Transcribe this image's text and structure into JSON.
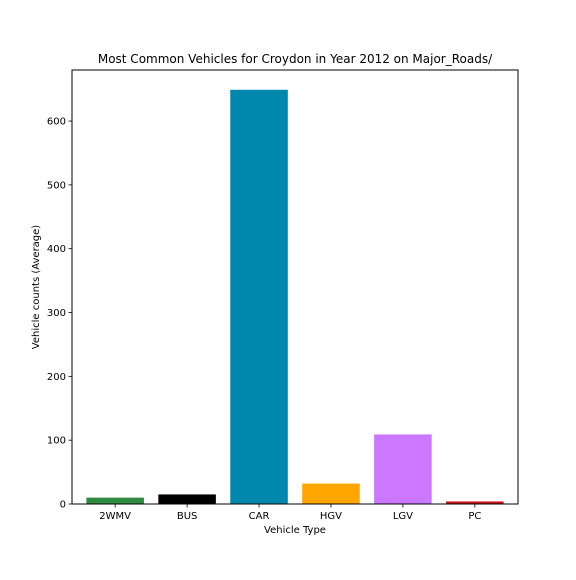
{
  "chart_data": {
    "type": "bar",
    "title": "Most Common Vehicles for Croydon in Year 2012 on Major_Roads/",
    "xlabel": "Vehicle Type",
    "ylabel": "Vehicle counts (Average)",
    "categories": [
      "2WMV",
      "BUS",
      "CAR",
      "HGV",
      "LGV",
      "PC"
    ],
    "values": [
      10,
      15,
      649,
      32,
      109,
      4
    ],
    "colors": [
      "#2e8b3f",
      "#000000",
      "#0087ad",
      "#ffa500",
      "#cc77ff",
      "#cc1111"
    ],
    "ylim": [
      0,
      680
    ],
    "yticks": [
      0,
      100,
      200,
      300,
      400,
      500,
      600
    ],
    "grid": false,
    "legend": false
  }
}
